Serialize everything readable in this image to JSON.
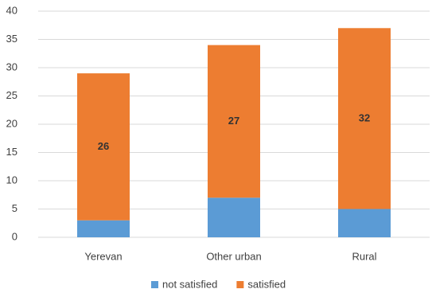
{
  "chart_data": {
    "type": "stacked_bar",
    "categories": [
      "Yerevan",
      "Other urban",
      "Rural"
    ],
    "series": [
      {
        "name": "not satisfied",
        "color": "#5b9bd5",
        "values": [
          3,
          7,
          5
        ],
        "labels": false
      },
      {
        "name": "satisfied",
        "color": "#ed7d31",
        "values": [
          26,
          27,
          32
        ],
        "labels": true
      }
    ],
    "ylim": [
      0,
      40
    ],
    "yticks": [
      0,
      5,
      10,
      15,
      20,
      25,
      30,
      35,
      40
    ],
    "grid": true,
    "legend": "bottom"
  }
}
